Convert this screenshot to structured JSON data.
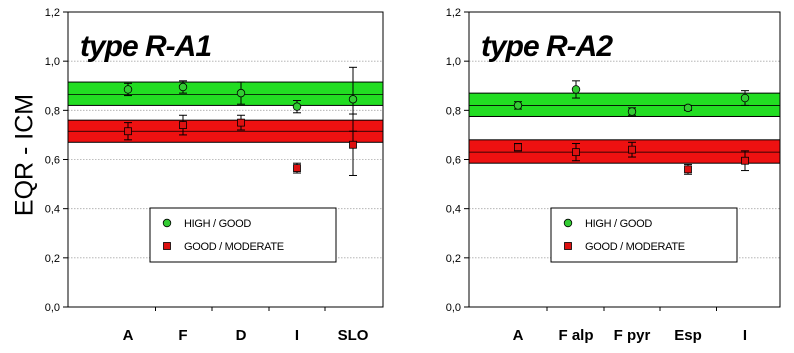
{
  "ylabel": "EQR - ICM",
  "chart_data": [
    {
      "type": "scatter",
      "title": "type R-A1",
      "ylim": [
        0,
        1.2
      ],
      "yticks": [
        "0,0",
        "0,2",
        "0,4",
        "0,6",
        "0,8",
        "1,0",
        "1,2"
      ],
      "ytick_values": [
        0,
        0.2,
        0.4,
        0.6,
        0.8,
        1.0,
        1.2
      ],
      "grid": true,
      "legend_position": "center-bottom",
      "categories": [
        "A",
        "F",
        "D",
        "I",
        "SLO"
      ],
      "bands": [
        {
          "name": "HIGH / GOOD",
          "center": 0.865,
          "lower": 0.82,
          "upper": 0.915,
          "color": "#22dd22"
        },
        {
          "name": "GOOD / MODERATE",
          "center": 0.715,
          "lower": 0.67,
          "upper": 0.76,
          "color": "#ee1111"
        }
      ],
      "series": [
        {
          "name": "HIGH / GOOD",
          "marker": "circle",
          "color": "#33cc33",
          "values": [
            0.885,
            0.895,
            0.87,
            0.815,
            0.845
          ],
          "err": [
            0.025,
            0.025,
            0.045,
            0.025,
            0.13
          ]
        },
        {
          "name": "GOOD / MODERATE",
          "marker": "square",
          "color": "#dd1111",
          "values": [
            0.715,
            0.74,
            0.75,
            0.565,
            0.66
          ],
          "err": [
            0.035,
            0.04,
            0.03,
            0.02,
            0.125
          ]
        }
      ]
    },
    {
      "type": "scatter",
      "title": "type R-A2",
      "ylim": [
        0,
        1.2
      ],
      "yticks": [
        "0,0",
        "0,2",
        "0,4",
        "0,6",
        "0,8",
        "1,0",
        "1,2"
      ],
      "ytick_values": [
        0,
        0.2,
        0.4,
        0.6,
        0.8,
        1.0,
        1.2
      ],
      "grid": true,
      "legend_position": "center-bottom",
      "categories": [
        "A",
        "F alp",
        "F pyr",
        "Esp",
        "I"
      ],
      "bands": [
        {
          "name": "HIGH / GOOD",
          "center": 0.82,
          "lower": 0.775,
          "upper": 0.87,
          "color": "#22dd22"
        },
        {
          "name": "GOOD / MODERATE",
          "center": 0.63,
          "lower": 0.585,
          "upper": 0.68,
          "color": "#ee1111"
        }
      ],
      "series": [
        {
          "name": "HIGH / GOOD",
          "marker": "circle",
          "color": "#33cc33",
          "values": [
            0.82,
            0.885,
            0.795,
            0.81,
            0.85
          ],
          "err": [
            0.015,
            0.035,
            0.015,
            0.01,
            0.03
          ]
        },
        {
          "name": "GOOD / MODERATE",
          "marker": "square",
          "color": "#dd1111",
          "values": [
            0.65,
            0.63,
            0.64,
            0.56,
            0.595
          ],
          "err": [
            0.015,
            0.035,
            0.03,
            0.02,
            0.04
          ]
        }
      ]
    }
  ]
}
